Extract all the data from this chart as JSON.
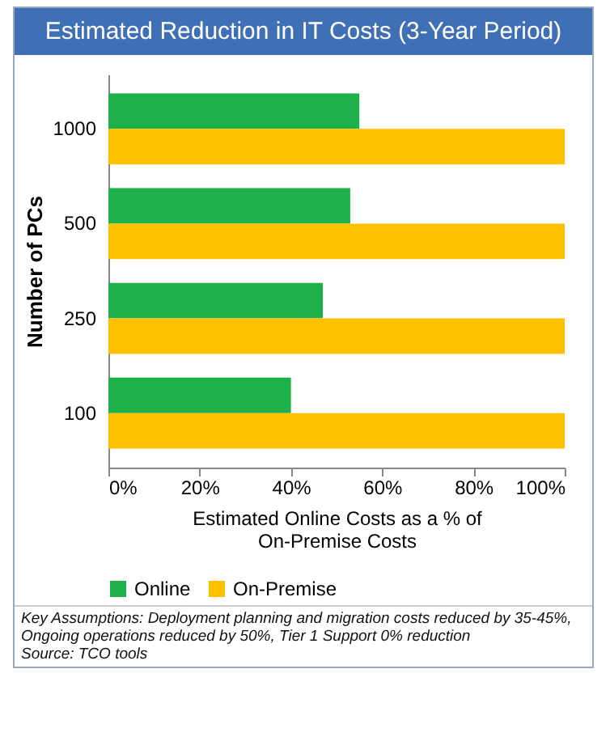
{
  "chart_data": {
    "type": "bar",
    "orientation": "horizontal",
    "title": "Estimated Reduction in IT Costs (3-Year Period)",
    "categories": [
      "1000",
      "500",
      "250",
      "100"
    ],
    "series": [
      {
        "name": "Online",
        "color": "#1db04b",
        "values": [
          55,
          53,
          47,
          40
        ]
      },
      {
        "name": "On-Premise",
        "color": "#ffc000",
        "values": [
          100,
          100,
          100,
          100
        ]
      }
    ],
    "xlim": [
      0,
      100
    ],
    "xticks": [
      {
        "value": 0,
        "label": "0%"
      },
      {
        "value": 20,
        "label": "20%"
      },
      {
        "value": 40,
        "label": "40%"
      },
      {
        "value": 60,
        "label": "60%"
      },
      {
        "value": 80,
        "label": "80%"
      },
      {
        "value": 100,
        "label": "100%"
      }
    ],
    "xlabel": "Estimated Online Costs as a % of On-Premise Costs",
    "ylabel": "Number of PCs",
    "legend": "bottom",
    "annotations": [
      "Key Assumptions:  Deployment planning and migration costs reduced by 35-45%, Ongoing operations reduced by 50%, Tier 1 Support 0% reduction",
      "Source:  TCO tools"
    ]
  }
}
